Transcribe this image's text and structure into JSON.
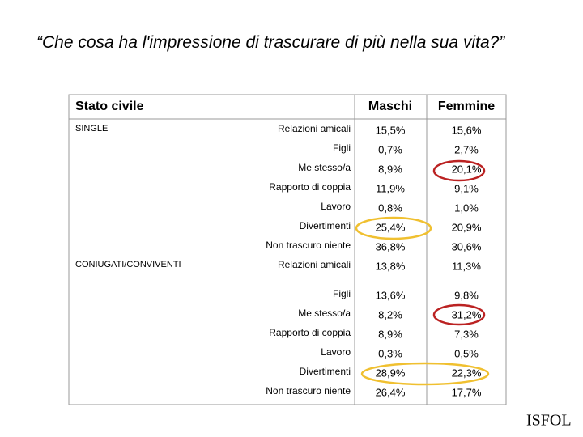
{
  "title": "“Che cosa ha l'impressione di trascurare di più nella sua vita?”",
  "table": {
    "header": [
      "Stato civile",
      "Maschi",
      "Femmine"
    ],
    "groups": [
      {
        "label": "SINGLE",
        "rows": [
          [
            "Relazioni amicali",
            "15,5%",
            "15,6%"
          ],
          [
            "Figli",
            "0,7%",
            "2,7%"
          ],
          [
            "Me stesso/a",
            "8,9%",
            "20,1%"
          ],
          [
            "Rapporto di coppia",
            "11,9%",
            "9,1%"
          ],
          [
            "Lavoro",
            "0,8%",
            "1,0%"
          ],
          [
            "Divertimenti",
            "25,4%",
            "20,9%"
          ],
          [
            "Non trascuro niente",
            "36,8%",
            "30,6%"
          ]
        ]
      },
      {
        "label": "CONIUGATI/CONVIVENTI",
        "rows": [
          [
            "Relazioni amicali",
            "13,8%",
            "11,3%"
          ],
          [
            "Figli",
            "13,6%",
            "9,8%"
          ],
          [
            "Me stesso/a",
            "8,2%",
            "31,2%"
          ],
          [
            "Rapporto di coppia",
            "8,9%",
            "7,3%"
          ],
          [
            "Lavoro",
            "0,3%",
            "0,5%"
          ],
          [
            "Divertimenti",
            "28,9%",
            "22,3%"
          ],
          [
            "Non trascuro niente",
            "26,4%",
            "17,7%"
          ]
        ]
      }
    ]
  },
  "logo": "ISFOL"
}
